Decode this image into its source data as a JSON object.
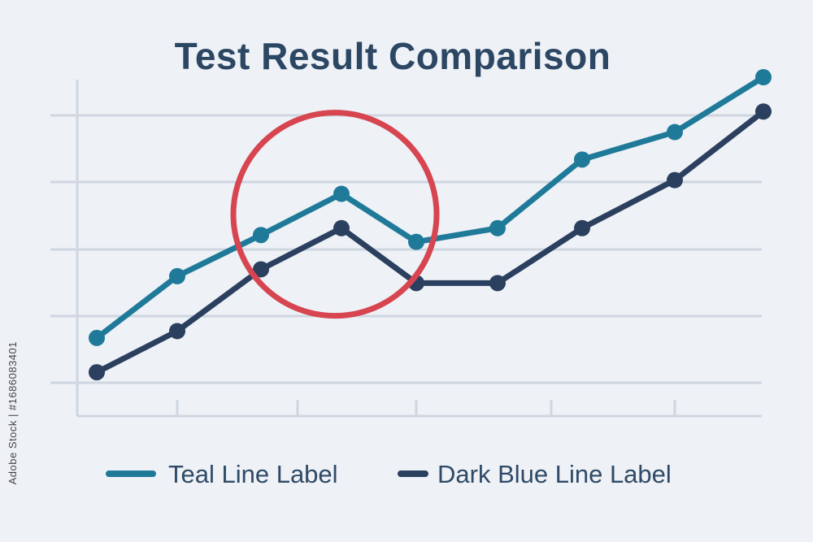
{
  "chart_data": {
    "type": "line",
    "title": "Test Result Comparison",
    "xlabel": "",
    "ylabel": "",
    "x": [
      1,
      2,
      3,
      4,
      5,
      6,
      7,
      8,
      9
    ],
    "series": [
      {
        "name": "Teal Line Label",
        "color": "#1f7a99",
        "values": [
          2.2,
          3.1,
          3.7,
          4.3,
          3.6,
          3.8,
          4.8,
          5.2,
          6.0
        ]
      },
      {
        "name": "Dark Blue Line Label",
        "color": "#2b3f5f",
        "values": [
          1.7,
          2.3,
          3.2,
          3.8,
          3.0,
          3.0,
          3.8,
          4.5,
          5.5
        ]
      }
    ],
    "ylim": [
      1.5,
      6.0
    ],
    "grid": true,
    "legend": "bottom",
    "highlight": {
      "type": "circle",
      "color": "#d64550",
      "around_x": 4
    }
  },
  "credit": "Adobe Stock | #1686083401"
}
